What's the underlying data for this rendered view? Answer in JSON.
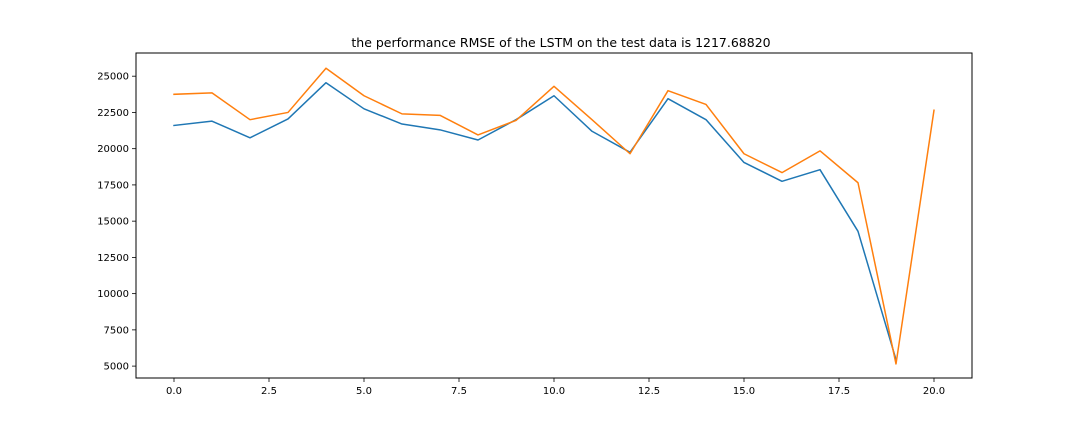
{
  "chart_data": {
    "type": "line",
    "title": "the performance RMSE of the LSTM  on the test data is 1217.68820",
    "xlabel": "",
    "ylabel": "",
    "xlim": [
      -1.0,
      21.0
    ],
    "ylim": [
      4180,
      26600
    ],
    "grid": false,
    "xticks": [
      0.0,
      2.5,
      5.0,
      7.5,
      10.0,
      12.5,
      15.0,
      17.5,
      20.0
    ],
    "xtick_labels": [
      "0.0",
      "2.5",
      "5.0",
      "7.5",
      "10.0",
      "12.5",
      "15.0",
      "17.5",
      "20.0"
    ],
    "yticks": [
      5000,
      7500,
      10000,
      12500,
      15000,
      17500,
      20000,
      22500,
      25000
    ],
    "ytick_labels": [
      "5000",
      "7500",
      "10000",
      "12500",
      "15000",
      "17500",
      "20000",
      "22500",
      "25000"
    ],
    "series": [
      {
        "color": "#1f77b4",
        "x": [
          0,
          1,
          2,
          3,
          4,
          5,
          6,
          7,
          8,
          9,
          10,
          11,
          12,
          13,
          14,
          15,
          16,
          17,
          18,
          19
        ],
        "values": [
          21600,
          21900,
          20750,
          22050,
          24550,
          22750,
          21700,
          21300,
          20600,
          22000,
          23650,
          21200,
          19750,
          23450,
          22000,
          19050,
          17750,
          18550,
          14300,
          5450
        ]
      },
      {
        "color": "#ff7f0e",
        "x": [
          0,
          1,
          2,
          3,
          4,
          5,
          6,
          7,
          8,
          9,
          10,
          11,
          12,
          13,
          14,
          15,
          16,
          17,
          18,
          19,
          20
        ],
        "values": [
          23750,
          23850,
          22000,
          22500,
          25550,
          23650,
          22400,
          22300,
          20950,
          21950,
          24300,
          22000,
          19650,
          24000,
          23050,
          19650,
          18350,
          19850,
          17650,
          5150,
          22650
        ]
      }
    ]
  }
}
